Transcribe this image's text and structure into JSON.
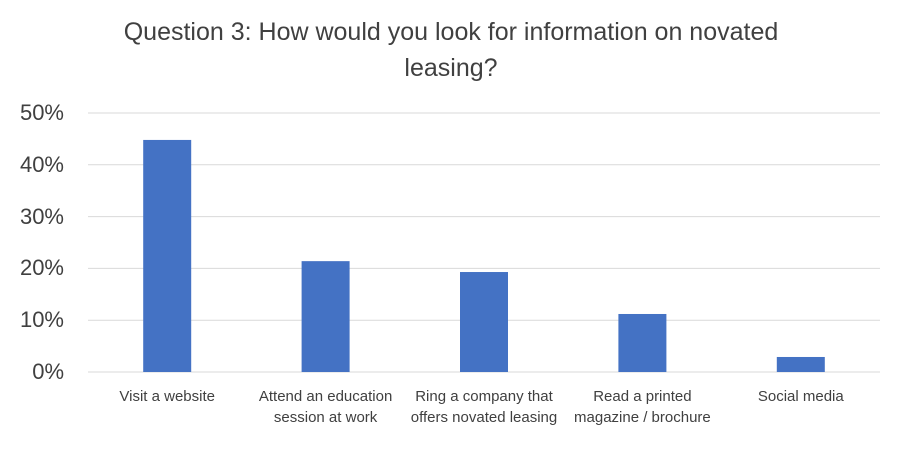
{
  "chart_data": {
    "type": "bar",
    "title": "Question 3: How would you look for information on novated leasing?",
    "categories": [
      "Visit a website",
      "Attend an education session at work",
      "Ring a company that offers novated leasing",
      "Read a printed magazine / brochure",
      "Social media"
    ],
    "values": [
      44.8,
      21.4,
      19.3,
      11.2,
      2.9
    ],
    "color": "#4472c4",
    "ylim": [
      0,
      50
    ],
    "yticks": [
      {
        "value": 0,
        "label": "0%"
      },
      {
        "value": 10,
        "label": "10%"
      },
      {
        "value": 20,
        "label": "20%"
      },
      {
        "value": 30,
        "label": "30%"
      },
      {
        "value": 40,
        "label": "40%"
      },
      {
        "value": 50,
        "label": "50%"
      }
    ],
    "grid": true
  }
}
